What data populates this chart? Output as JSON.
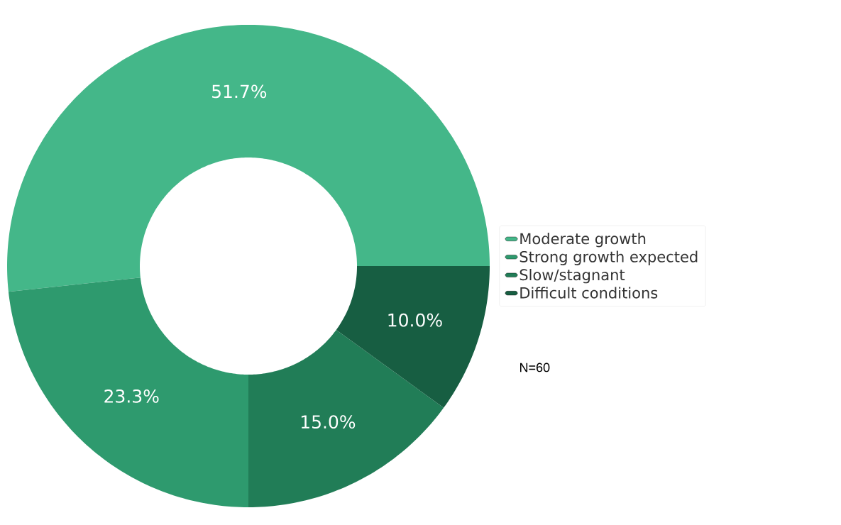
{
  "chart_data": {
    "type": "donut",
    "categories": [
      "Moderate growth",
      "Strong growth expected",
      "Slow/stagnant",
      "Difficult conditions"
    ],
    "values": [
      51.7,
      23.3,
      15.0,
      10.0
    ],
    "colors": [
      "#44b789",
      "#2e9a6e",
      "#217d57",
      "#175e42"
    ],
    "value_labels": [
      "51.7%",
      "23.3%",
      "15.0%",
      "10.0%"
    ],
    "legend": "right",
    "annotations": [
      "N=60"
    ]
  }
}
